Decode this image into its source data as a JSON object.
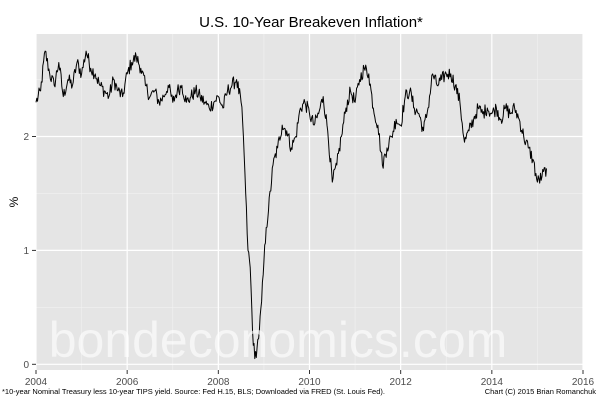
{
  "chart_data": {
    "type": "line",
    "title": "U.S. 10-Year Breakeven Inflation*",
    "xlabel": "",
    "ylabel": "%",
    "xlim": [
      2004.0,
      2016.0
    ],
    "ylim": [
      -0.05,
      2.9
    ],
    "x_ticks": [
      2004,
      2006,
      2008,
      2010,
      2012,
      2014,
      2016
    ],
    "y_ticks": [
      0,
      1,
      2
    ],
    "grid": true,
    "legend": "none",
    "line_color": "#000000",
    "panel_color": "#e5e5e5",
    "grid_color": "#ffffff",
    "series": [
      {
        "x": [
          2004.0,
          2004.1,
          2004.2,
          2004.3,
          2004.4,
          2004.5,
          2004.6,
          2004.7,
          2004.8,
          2004.9,
          2005.0,
          2005.1,
          2005.2,
          2005.3,
          2005.4,
          2005.5,
          2005.6,
          2005.7,
          2005.8,
          2005.9,
          2006.0,
          2006.1,
          2006.2,
          2006.3,
          2006.4,
          2006.5,
          2006.6,
          2006.7,
          2006.8,
          2006.9,
          2007.0,
          2007.1,
          2007.2,
          2007.3,
          2007.4,
          2007.5,
          2007.6,
          2007.7,
          2007.8,
          2007.9,
          2008.0,
          2008.1,
          2008.2,
          2008.3,
          2008.4,
          2008.5,
          2008.55,
          2008.6,
          2008.65,
          2008.7,
          2008.75,
          2008.8,
          2008.85,
          2008.9,
          2008.95,
          2009.0,
          2009.05,
          2009.1,
          2009.2,
          2009.3,
          2009.4,
          2009.5,
          2009.6,
          2009.7,
          2009.8,
          2009.9,
          2010.0,
          2010.1,
          2010.2,
          2010.3,
          2010.4,
          2010.5,
          2010.6,
          2010.7,
          2010.8,
          2010.9,
          2011.0,
          2011.1,
          2011.2,
          2011.3,
          2011.4,
          2011.5,
          2011.6,
          2011.7,
          2011.8,
          2011.9,
          2012.0,
          2012.1,
          2012.2,
          2012.3,
          2012.4,
          2012.5,
          2012.6,
          2012.7,
          2012.8,
          2012.9,
          2013.0,
          2013.1,
          2013.2,
          2013.3,
          2013.4,
          2013.5,
          2013.6,
          2013.7,
          2013.8,
          2013.9,
          2014.0,
          2014.1,
          2014.2,
          2014.3,
          2014.4,
          2014.5,
          2014.6,
          2014.7,
          2014.8,
          2014.9,
          2015.0,
          2015.1,
          2015.2
        ],
        "y": [
          2.3,
          2.4,
          2.75,
          2.55,
          2.45,
          2.65,
          2.35,
          2.5,
          2.45,
          2.65,
          2.55,
          2.75,
          2.6,
          2.55,
          2.45,
          2.4,
          2.35,
          2.5,
          2.4,
          2.35,
          2.55,
          2.65,
          2.7,
          2.6,
          2.45,
          2.35,
          2.4,
          2.3,
          2.35,
          2.45,
          2.3,
          2.4,
          2.45,
          2.3,
          2.35,
          2.4,
          2.35,
          2.3,
          2.25,
          2.3,
          2.35,
          2.25,
          2.4,
          2.45,
          2.5,
          2.3,
          2.0,
          1.5,
          1.0,
          0.85,
          0.3,
          0.05,
          0.15,
          0.3,
          0.55,
          0.9,
          1.2,
          1.35,
          1.75,
          1.9,
          2.1,
          2.05,
          1.9,
          2.0,
          2.25,
          2.3,
          2.2,
          2.1,
          2.2,
          2.35,
          2.05,
          1.6,
          1.75,
          2.0,
          2.25,
          2.4,
          2.3,
          2.5,
          2.6,
          2.55,
          2.25,
          2.1,
          1.75,
          1.9,
          2.0,
          2.15,
          2.1,
          2.35,
          2.4,
          2.25,
          2.2,
          2.05,
          2.25,
          2.55,
          2.45,
          2.5,
          2.55,
          2.55,
          2.45,
          2.3,
          1.95,
          2.05,
          2.15,
          2.25,
          2.2,
          2.25,
          2.2,
          2.25,
          2.15,
          2.25,
          2.2,
          2.25,
          2.15,
          2.0,
          1.9,
          1.8,
          1.6,
          1.65,
          1.72
        ]
      }
    ]
  },
  "footnote": "*10-year Nominal Treasury less 10-year TIPS yield. Source: Fed H.15, BLS; Downloaded via FRED (St. Louis Fed).",
  "credit": "Chart (C) 2015 Brian Romanchuk",
  "watermark": "bondeconomics.com"
}
